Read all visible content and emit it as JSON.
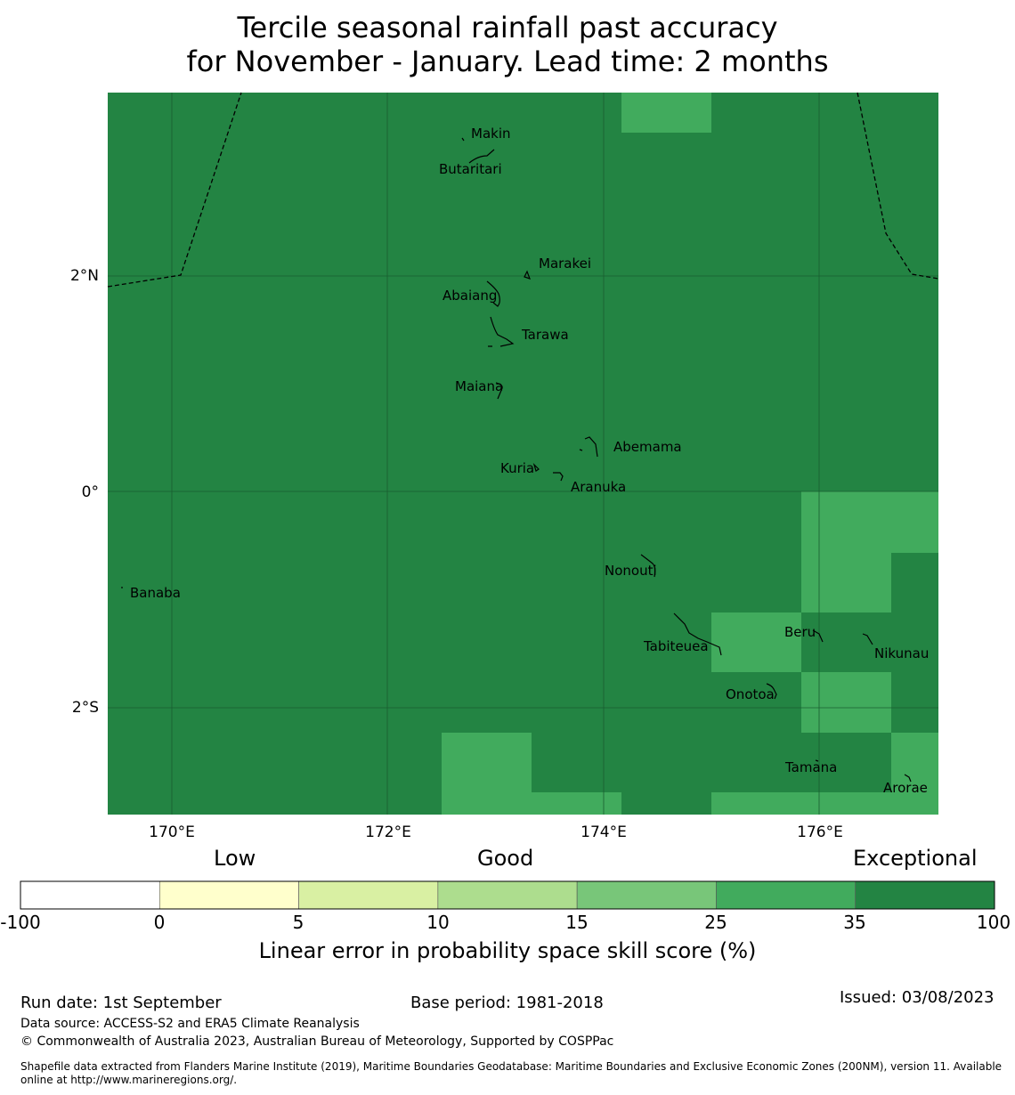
{
  "title": {
    "line1": "Tercile seasonal rainfall past accuracy",
    "line2": "for November - January. Lead time: 2 months"
  },
  "map": {
    "lon_range": [
      169.4,
      177.1
    ],
    "lat_range": [
      -2.99,
      3.7
    ],
    "x_ticks": [
      "170°E",
      "172°E",
      "174°E",
      "176°E"
    ],
    "y_ticks": [
      "2°N",
      "0°",
      "2°S"
    ],
    "skill_colors": {
      "exceptional": "#238443",
      "very_good": "#41ab5d"
    },
    "background_category": "35-100",
    "higher_skill_zone_category": "25-35",
    "islands": [
      {
        "name": "Makin"
      },
      {
        "name": "Butaritari"
      },
      {
        "name": "Marakei"
      },
      {
        "name": "Abaiang"
      },
      {
        "name": "Tarawa"
      },
      {
        "name": "Maiana"
      },
      {
        "name": "Abemama"
      },
      {
        "name": "Kuria"
      },
      {
        "name": "Aranuka"
      },
      {
        "name": "Banaba"
      },
      {
        "name": "Nonouti"
      },
      {
        "name": "Beru"
      },
      {
        "name": "Tabiteuea"
      },
      {
        "name": "Nikunau"
      },
      {
        "name": "Onotoa"
      },
      {
        "name": "Tamana"
      },
      {
        "name": "Arorae"
      }
    ]
  },
  "colorbar": {
    "categories": [
      "Low",
      "Good",
      "Exceptional"
    ],
    "ticks": [
      "-100",
      "0",
      "5",
      "10",
      "15",
      "25",
      "35",
      "100"
    ],
    "colors": [
      "#ffffff",
      "#ffffcc",
      "#d9f0a3",
      "#addd8e",
      "#78c679",
      "#41ab5d",
      "#238443"
    ],
    "label": "Linear error in probability space skill score (%)"
  },
  "footer": {
    "run_date": "Run date: 1st September",
    "base_period": "Base period: 1981-2018",
    "issued": "Issued: 03/08/2023",
    "data_source": "Data source: ACCESS-S2 and ERA5 Climate Reanalysis",
    "copyright": "© Commonwealth of Australia 2023, Australian Bureau of Meteorology, Supported by COSPPac",
    "shapefile": "Shapefile data extracted from Flanders Marine Institute (2019), Maritime Boundaries Geodatabase: Maritime Boundaries and Exclusive Economic Zones (200NM), version 11. Available online at http://www.marineregions.org/."
  }
}
